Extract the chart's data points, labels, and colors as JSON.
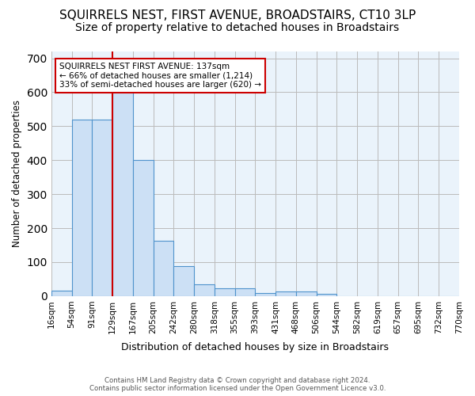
{
  "title": "SQUIRRELS NEST, FIRST AVENUE, BROADSTAIRS, CT10 3LP",
  "subtitle": "Size of property relative to detached houses in Broadstairs",
  "xlabel": "Distribution of detached houses by size in Broadstairs",
  "ylabel": "Number of detached properties",
  "footer_line1": "Contains HM Land Registry data © Crown copyright and database right 2024.",
  "footer_line2": "Contains public sector information licensed under the Open Government Licence v3.0.",
  "bin_labels": [
    "16sqm",
    "54sqm",
    "91sqm",
    "129sqm",
    "167sqm",
    "205sqm",
    "242sqm",
    "280sqm",
    "318sqm",
    "355sqm",
    "393sqm",
    "431sqm",
    "468sqm",
    "506sqm",
    "544sqm",
    "582sqm",
    "619sqm",
    "657sqm",
    "695sqm",
    "732sqm",
    "770sqm"
  ],
  "bar_values": [
    15,
    520,
    520,
    635,
    400,
    162,
    88,
    35,
    22,
    23,
    8,
    14,
    14,
    6,
    0,
    0,
    0,
    0,
    0,
    0
  ],
  "bar_color": "#cce0f5",
  "bar_edge_color": "#4f93cc",
  "red_line_x": 3,
  "red_line_color": "#cc0000",
  "annotation_text": "SQUIRRELS NEST FIRST AVENUE: 137sqm\n← 66% of detached houses are smaller (1,214)\n33% of semi-detached houses are larger (620) →",
  "annotation_box_color": "#ffffff",
  "annotation_box_edge": "#cc0000",
  "ylim": [
    0,
    720
  ],
  "yticks": [
    0,
    100,
    200,
    300,
    400,
    500,
    600,
    700
  ],
  "plot_bg_color": "#eaf3fb",
  "title_fontsize": 11,
  "subtitle_fontsize": 10
}
